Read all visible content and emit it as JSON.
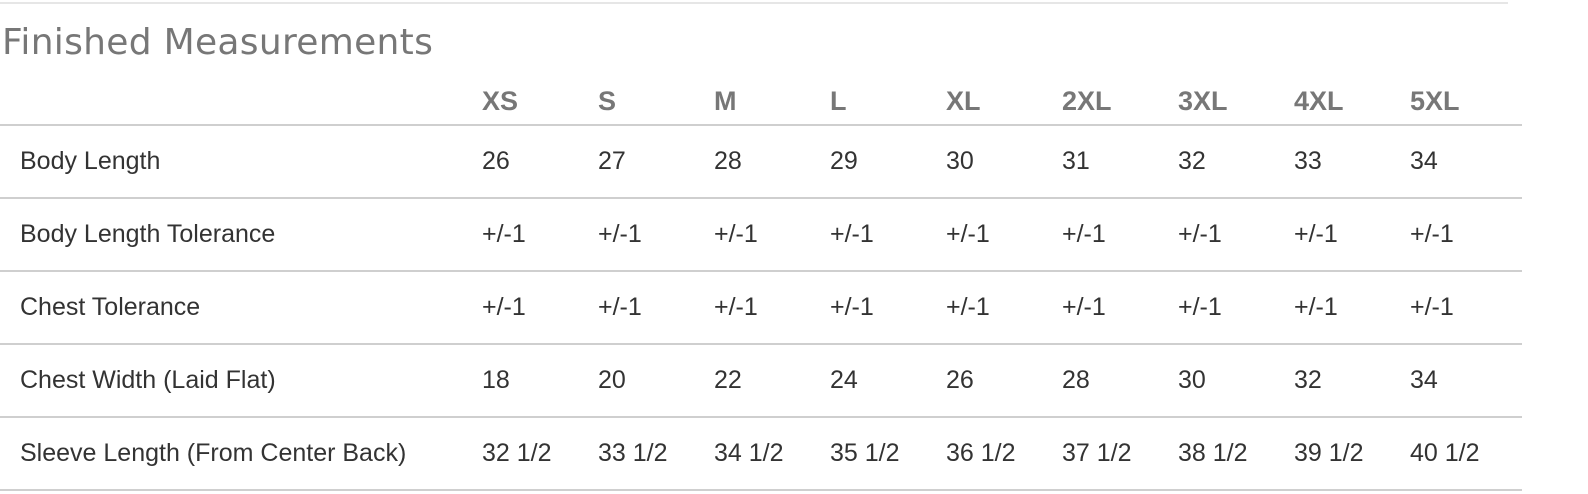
{
  "section": {
    "title": "Finished Measurements"
  },
  "table": {
    "corner_label": "",
    "sizes": [
      "XS",
      "S",
      "M",
      "L",
      "XL",
      "2XL",
      "3XL",
      "4XL",
      "5XL"
    ],
    "rows": [
      {
        "label": "Body Length",
        "values": [
          "26",
          "27",
          "28",
          "29",
          "30",
          "31",
          "32",
          "33",
          "34"
        ]
      },
      {
        "label": "Body Length Tolerance",
        "values": [
          "+/-1",
          "+/-1",
          "+/-1",
          "+/-1",
          "+/-1",
          "+/-1",
          "+/-1",
          "+/-1",
          "+/-1"
        ]
      },
      {
        "label": "Chest Tolerance",
        "values": [
          "+/-1",
          "+/-1",
          "+/-1",
          "+/-1",
          "+/-1",
          "+/-1",
          "+/-1",
          "+/-1",
          "+/-1"
        ]
      },
      {
        "label": "Chest Width (Laid Flat)",
        "values": [
          "18",
          "20",
          "22",
          "24",
          "26",
          "28",
          "30",
          "32",
          "34"
        ]
      },
      {
        "label": "Sleeve Length (From Center Back)",
        "values": [
          "32 1/2",
          "33 1/2",
          "34 1/2",
          "35 1/2",
          "36 1/2",
          "37 1/2",
          "38 1/2",
          "39 1/2",
          "40 1/2"
        ]
      }
    ]
  },
  "colors": {
    "heading_text": "#777777",
    "body_text": "#333333",
    "rule": "#cfcfcf"
  }
}
